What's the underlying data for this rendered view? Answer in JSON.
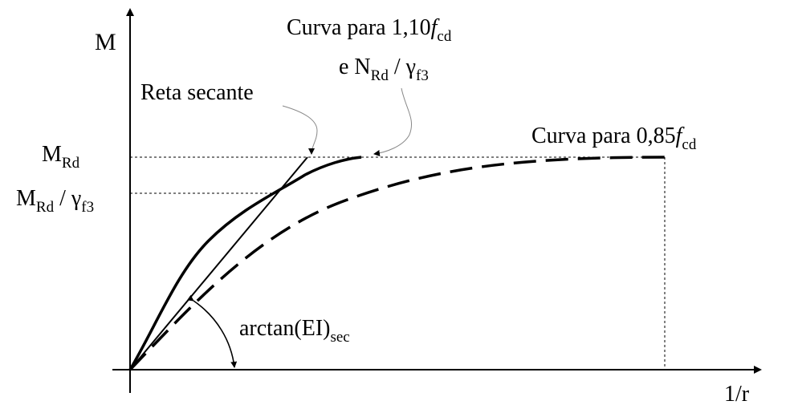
{
  "axes": {
    "y_label": "M",
    "x_label": "1/r"
  },
  "y_levels": {
    "m_rd": {
      "main": "M",
      "sub": "Rd"
    },
    "m_rd_over_gamma": {
      "main": "M",
      "sub": "Rd",
      "sep": " / γ",
      "sub2": "f3"
    }
  },
  "callouts": {
    "curve_110": {
      "line1_prefix": "Curva para 1,10",
      "line1_italic": "f",
      "line1_sub": "cd",
      "line2_prefix": "e N",
      "line2_sub": "Rd",
      "line2_sep": " / γ",
      "line2_sub2": "f3"
    },
    "secant": {
      "text": "Reta secante"
    },
    "curve_085": {
      "prefix": "Curva para 0,85",
      "italic": "f",
      "sub": "cd"
    },
    "angle": {
      "text": "arctan(EI)",
      "sub": "sec"
    }
  }
}
